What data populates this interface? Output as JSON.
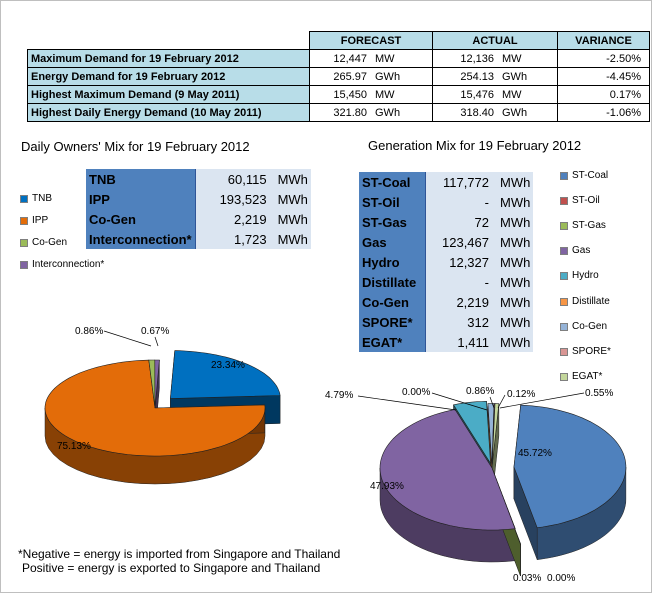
{
  "summary": {
    "headers": [
      "",
      "FORECAST",
      "ACTUAL",
      "VARIANCE"
    ],
    "rows": [
      {
        "label": "Maximum Demand for 19 February 2012",
        "forecast": "12,447",
        "forecast_unit": "MW",
        "actual": "12,136",
        "actual_unit": "MW",
        "variance": "-2.50%"
      },
      {
        "label": "Energy Demand for 19 February 2012",
        "forecast": "265.97",
        "forecast_unit": "GWh",
        "actual": "254.13",
        "actual_unit": "GWh",
        "variance": "-4.45%"
      },
      {
        "label": "Highest Maximum Demand (9 May 2011)",
        "forecast": "15,450",
        "forecast_unit": "MW",
        "actual": "15,476",
        "actual_unit": "MW",
        "variance": "0.17%"
      },
      {
        "label": "Highest Daily Energy Demand (10 May 2011)",
        "forecast": "321.80",
        "forecast_unit": "GWh",
        "actual": "318.40",
        "actual_unit": "GWh",
        "variance": "-1.06%"
      }
    ]
  },
  "owners": {
    "title": "Daily Owners' Mix for 19 February 2012",
    "table": [
      {
        "name": "TNB",
        "value": "60,115",
        "unit": "MWh"
      },
      {
        "name": "IPP",
        "value": "193,523",
        "unit": "MWh"
      },
      {
        "name": "Co-Gen",
        "value": "2,219",
        "unit": "MWh"
      },
      {
        "name": "Interconnection*",
        "value": "1,723",
        "unit": "MWh"
      }
    ],
    "legend": [
      "TNB",
      "IPP",
      "Co-Gen",
      "Interconnection*"
    ]
  },
  "generation": {
    "title": "Generation Mix for 19 February 2012",
    "table": [
      {
        "name": "ST-Coal",
        "value": "117,772",
        "unit": "MWh"
      },
      {
        "name": "ST-Oil",
        "value": "-",
        "unit": "MWh"
      },
      {
        "name": "ST-Gas",
        "value": "72",
        "unit": "MWh"
      },
      {
        "name": "Gas",
        "value": "123,467",
        "unit": "MWh"
      },
      {
        "name": "Hydro",
        "value": "12,327",
        "unit": "MWh"
      },
      {
        "name": "Distillate",
        "value": "-",
        "unit": "MWh"
      },
      {
        "name": "Co-Gen",
        "value": "2,219",
        "unit": "MWh"
      },
      {
        "name": "SPORE*",
        "value": "312",
        "unit": "MWh"
      },
      {
        "name": "EGAT*",
        "value": "1,411",
        "unit": "MWh"
      }
    ],
    "legend": [
      "ST-Coal",
      "ST-Oil",
      "ST-Gas",
      "Gas",
      "Hydro",
      "Distillate",
      "Co-Gen",
      "SPORE*",
      "EGAT*"
    ]
  },
  "note": {
    "line1": "*Negative = energy is imported from Singapore and Thailand",
    "line2": "Positive = energy is exported to Singapore and Thailand"
  },
  "chart_data": [
    {
      "type": "pie",
      "title": "Daily Owners' Mix for 19 February 2012",
      "categories": [
        "TNB",
        "IPP",
        "Co-Gen",
        "Interconnection*"
      ],
      "values": [
        23.34,
        75.13,
        0.86,
        0.67
      ],
      "labels": [
        "23.34%",
        "75.13%",
        "0.86%",
        "0.67%"
      ],
      "colors": [
        "#0070c0",
        "#e36c09",
        "#9bbb59",
        "#8064a2"
      ],
      "legend": "left"
    },
    {
      "type": "pie",
      "title": "Generation Mix for 19 February 2012",
      "categories": [
        "ST-Coal",
        "ST-Oil",
        "ST-Gas",
        "Gas",
        "Hydro",
        "Distillate",
        "Co-Gen",
        "SPORE*",
        "EGAT*"
      ],
      "values": [
        45.72,
        0.0,
        0.03,
        47.93,
        4.79,
        0.0,
        0.86,
        0.12,
        0.55
      ],
      "labels": [
        "45.72%",
        "0.00%",
        "0.03%",
        "47.93%",
        "4.79%",
        "0.00%",
        "0.86%",
        "0.12%",
        "0.55%"
      ],
      "colors": [
        "#4f81bd",
        "#c0504d",
        "#9bbb59",
        "#8064a2",
        "#4bacc6",
        "#f79646",
        "#95b3d7",
        "#d99694",
        "#c3d69b"
      ],
      "legend": "right"
    }
  ]
}
